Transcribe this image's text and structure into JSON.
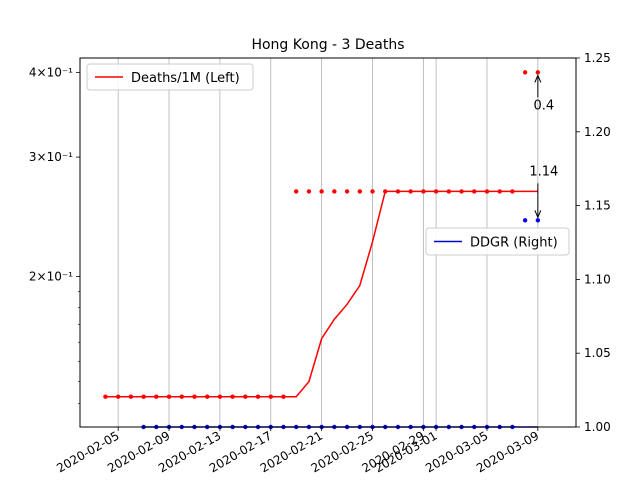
{
  "chart_data": {
    "type": "line",
    "title": "Hong Kong - 3 Deaths",
    "xlabel": "",
    "x_tick_labels": [
      "2020-02-05",
      "2020-02-09",
      "2020-02-13",
      "2020-02-17",
      "2020-02-21",
      "2020-02-25",
      "2020-02-29",
      "2020-03-01",
      "2020-03-05",
      "2020-03-09"
    ],
    "y_left": {
      "scale": "log",
      "range": [
        0.12,
        0.42
      ],
      "tick_values": [
        0.2,
        0.3,
        0.4
      ],
      "tick_labels": [
        "2×10⁻¹",
        "3×10⁻¹",
        "4×10⁻¹"
      ]
    },
    "y_right": {
      "scale": "linear",
      "range": [
        1.0,
        1.25
      ],
      "tick_values": [
        1.0,
        1.05,
        1.1,
        1.15,
        1.2,
        1.25
      ],
      "tick_labels": [
        "1.00",
        "1.05",
        "1.10",
        "1.15",
        "1.20",
        "1.25"
      ]
    },
    "series": [
      {
        "name": "Deaths/1M (Left)",
        "axis": "left",
        "color": "#ff0000",
        "style": "line",
        "x": [
          "2020-02-04",
          "2020-02-05",
          "2020-02-06",
          "2020-02-07",
          "2020-02-08",
          "2020-02-09",
          "2020-02-10",
          "2020-02-11",
          "2020-02-12",
          "2020-02-13",
          "2020-02-14",
          "2020-02-15",
          "2020-02-16",
          "2020-02-17",
          "2020-02-18",
          "2020-02-19",
          "2020-02-20",
          "2020-02-21",
          "2020-02-22",
          "2020-02-23",
          "2020-02-24",
          "2020-02-25",
          "2020-02-26",
          "2020-02-27",
          "2020-02-28",
          "2020-02-29",
          "2020-03-01",
          "2020-03-02",
          "2020-03-03",
          "2020-03-04",
          "2020-03-05",
          "2020-03-06",
          "2020-03-07",
          "2020-03-08",
          "2020-03-09"
        ],
        "values": [
          0.133,
          0.133,
          0.133,
          0.133,
          0.133,
          0.133,
          0.133,
          0.133,
          0.133,
          0.133,
          0.133,
          0.133,
          0.133,
          0.133,
          0.133,
          0.133,
          0.14,
          0.162,
          0.173,
          0.182,
          0.194,
          0.225,
          0.267,
          0.267,
          0.267,
          0.267,
          0.267,
          0.267,
          0.267,
          0.267,
          0.267,
          0.267,
          0.267,
          0.267,
          0.267
        ]
      },
      {
        "name": "",
        "axis": "left",
        "color": "#ff0000",
        "style": "points",
        "x": [
          "2020-02-04",
          "2020-02-05",
          "2020-02-06",
          "2020-02-07",
          "2020-02-08",
          "2020-02-09",
          "2020-02-10",
          "2020-02-11",
          "2020-02-12",
          "2020-02-13",
          "2020-02-14",
          "2020-02-15",
          "2020-02-16",
          "2020-02-17",
          "2020-02-18",
          "2020-02-19",
          "2020-02-20",
          "2020-02-21",
          "2020-02-22",
          "2020-02-23",
          "2020-02-24",
          "2020-02-25",
          "2020-02-26",
          "2020-02-27",
          "2020-02-28",
          "2020-02-29",
          "2020-03-01",
          "2020-03-02",
          "2020-03-03",
          "2020-03-04",
          "2020-03-05",
          "2020-03-06",
          "2020-03-07",
          "2020-03-08",
          "2020-03-09"
        ],
        "values": [
          0.133,
          0.133,
          0.133,
          0.133,
          0.133,
          0.133,
          0.133,
          0.133,
          0.133,
          0.133,
          0.133,
          0.133,
          0.133,
          0.133,
          0.133,
          0.267,
          0.267,
          0.267,
          0.267,
          0.267,
          0.267,
          0.267,
          0.267,
          0.267,
          0.267,
          0.267,
          0.267,
          0.267,
          0.267,
          0.267,
          0.267,
          0.267,
          0.267,
          0.4,
          0.4
        ]
      },
      {
        "name": "DDGR (Right)",
        "axis": "right",
        "color": "#0000cc",
        "style": "line",
        "x": [
          "2020-02-07",
          "2020-03-09"
        ],
        "values": [
          1.0,
          1.0
        ]
      },
      {
        "name": "",
        "axis": "right",
        "color": "#0000ff",
        "style": "points",
        "x": [
          "2020-02-07",
          "2020-02-08",
          "2020-02-09",
          "2020-02-10",
          "2020-02-11",
          "2020-02-12",
          "2020-02-13",
          "2020-02-14",
          "2020-02-15",
          "2020-02-16",
          "2020-02-17",
          "2020-02-18",
          "2020-02-19",
          "2020-02-20",
          "2020-02-21",
          "2020-02-22",
          "2020-02-23",
          "2020-02-24",
          "2020-02-25",
          "2020-02-26",
          "2020-02-27",
          "2020-02-28",
          "2020-02-29",
          "2020-03-01",
          "2020-03-02",
          "2020-03-03",
          "2020-03-04",
          "2020-03-05",
          "2020-03-06",
          "2020-03-07",
          "2020-03-08",
          "2020-03-09"
        ],
        "values": [
          1,
          1,
          1,
          1,
          1,
          1,
          1,
          1,
          1,
          1,
          1,
          1,
          1,
          1,
          1,
          1,
          1,
          1,
          1,
          1,
          1,
          1,
          1,
          1,
          1,
          1,
          1,
          1,
          1,
          1,
          1.14,
          1.14
        ]
      }
    ],
    "annotations": [
      {
        "text": "0.4",
        "x": "2020-03-09",
        "value": 0.4,
        "axis": "left"
      },
      {
        "text": "1.14",
        "x": "2020-03-09",
        "value": 1.14,
        "axis": "right"
      }
    ],
    "legends": [
      {
        "placement": "upper-left",
        "entries": [
          "Deaths/1M (Left)"
        ]
      },
      {
        "placement": "center-right",
        "entries": [
          "DDGR (Right)"
        ]
      }
    ],
    "grid": "x-major"
  }
}
